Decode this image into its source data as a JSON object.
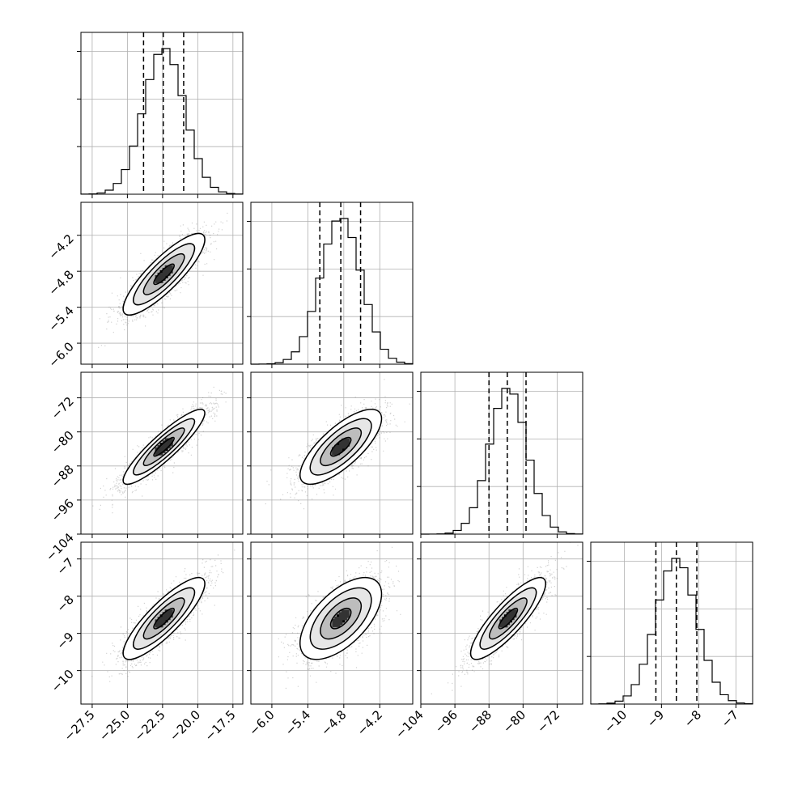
{
  "chart_data": {
    "type": "corner",
    "description_axes": "4 parameters, 1D marginal histograms on diagonal, 2D scatter/density/contours off-diagonal",
    "parameters": [
      {
        "index": 0,
        "range": [
          -28.3,
          -16.8
        ],
        "mean": -22.4,
        "sd": 1.45,
        "quantiles": [
          -23.85,
          -22.45,
          -21.0
        ],
        "ticks": [
          -27.5,
          -25.0,
          -22.5,
          -20.0,
          -17.5
        ],
        "tick_labels": [
          "−27.5",
          "−25.0",
          "−22.5",
          "−20.0",
          "−17.5"
        ]
      },
      {
        "index": 1,
        "range": [
          -6.35,
          -3.65
        ],
        "mean": -4.85,
        "sd": 0.34,
        "quantiles": [
          -5.2,
          -4.85,
          -4.52
        ],
        "ticks": [
          -6.0,
          -5.4,
          -4.8,
          -4.2
        ],
        "tick_labels": [
          "−6.0",
          "−5.4",
          "−4.8",
          "−4.2"
        ]
      },
      {
        "index": 2,
        "range": [
          -104,
          -66
        ],
        "mean": -83.5,
        "sd": 4.4,
        "quantiles": [
          -88.0,
          -83.7,
          -79.3
        ],
        "ticks": [
          -104,
          -96,
          -88,
          -80,
          -72
        ],
        "tick_labels": [
          "−104",
          "−96",
          "−88",
          "−80",
          "−72"
        ]
      },
      {
        "index": 3,
        "range": [
          -10.9,
          -6.55
        ],
        "mean": -8.6,
        "sd": 0.55,
        "quantiles": [
          -9.15,
          -8.6,
          -8.05
        ],
        "ticks": [
          -10,
          -9,
          -8,
          -7
        ],
        "tick_labels": [
          "−10",
          "−9",
          "−8",
          "−7"
        ]
      }
    ],
    "correlations": {
      "0-1": 0.85,
      "0-2": 0.9,
      "1-2": 0.75,
      "0-3": 0.85,
      "1-3": 0.6,
      "2-3": 0.85
    },
    "histogram_bins": 20,
    "grid": true,
    "contour_levels_sigma": [
      0.5,
      1.0,
      1.5,
      2.0
    ],
    "colors": {
      "ink": "#000000",
      "scatter": "#7a7a7a",
      "grid": "#b0b0b0"
    }
  }
}
